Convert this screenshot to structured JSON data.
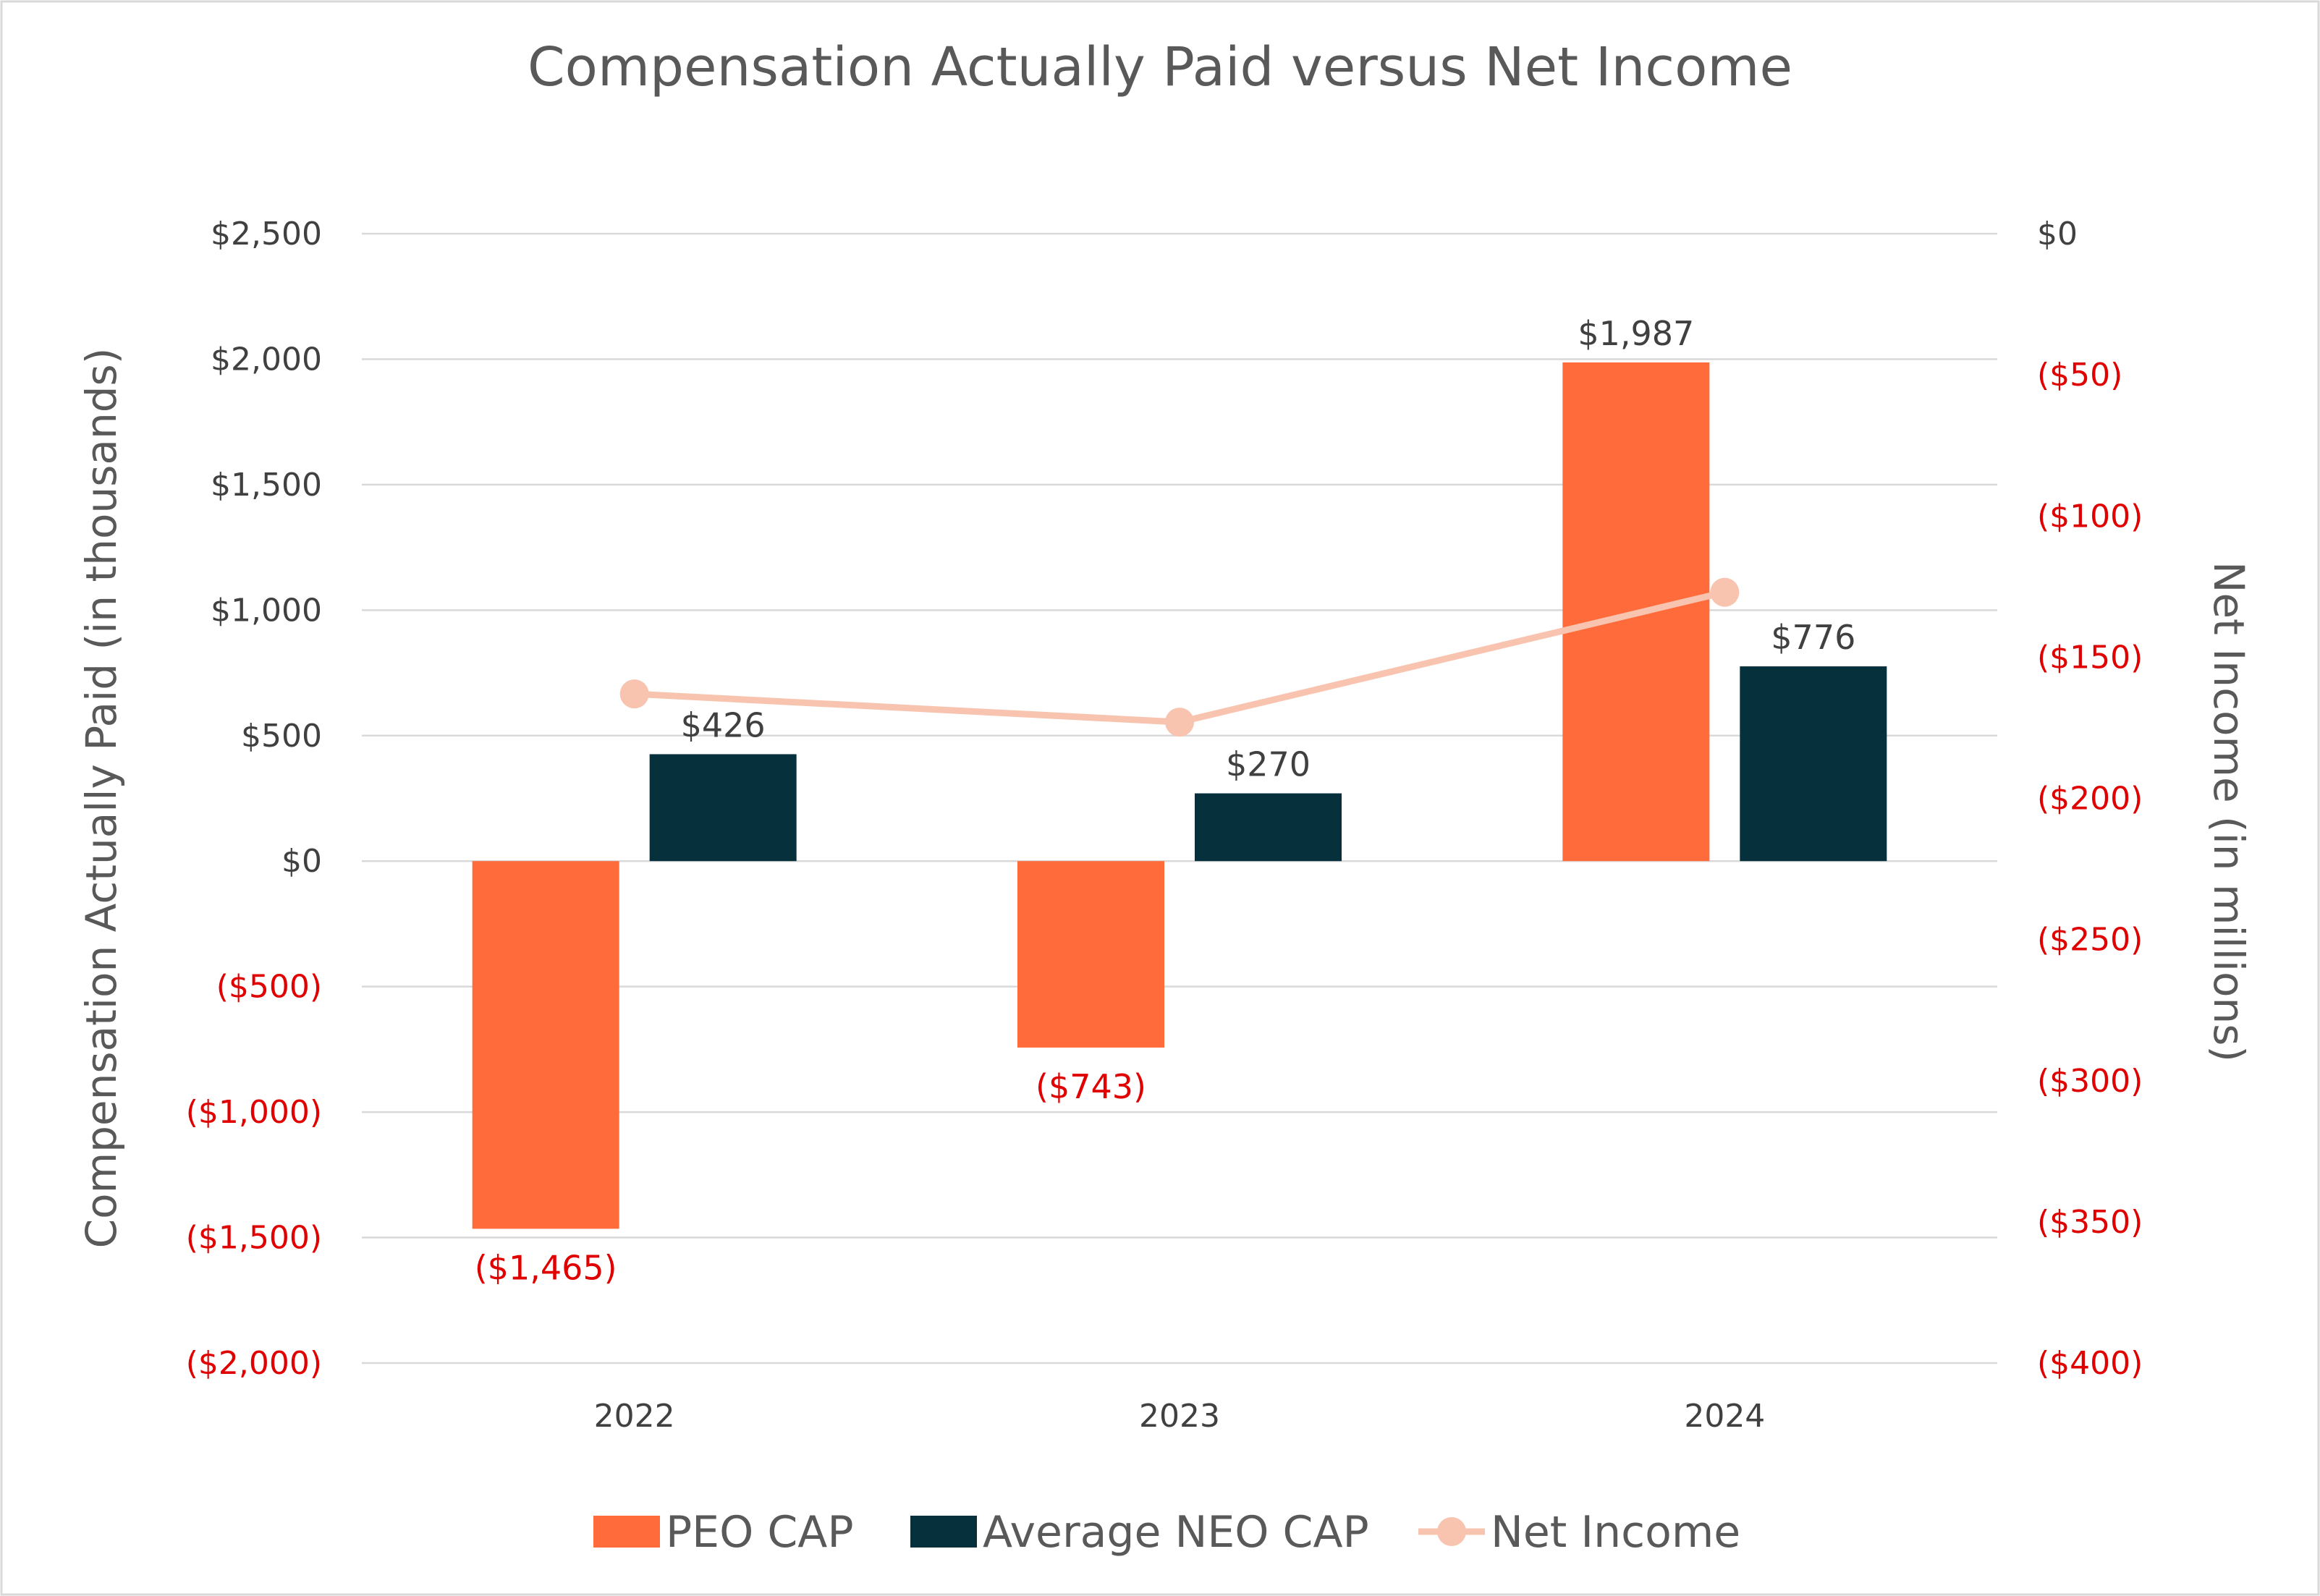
{
  "chart_data": {
    "type": "bar",
    "title": "Compensation Actually Paid versus Net Income",
    "categories": [
      "2022",
      "2023",
      "2024"
    ],
    "ylabel": "Compensation Actually Paid (in thousands)",
    "y2label": "Net Income (in millions)",
    "ylim": [
      -2000,
      2500
    ],
    "y2lim": [
      -400,
      0
    ],
    "yticks": [
      2500,
      2000,
      1500,
      1000,
      500,
      0,
      -500,
      -1000,
      -1500,
      -2000
    ],
    "ytick_labels": [
      "$2,500",
      "$2,000",
      "$1,500",
      "$1,000",
      "$500",
      "$0",
      "($500)",
      "($1,000)",
      "($1,500)",
      "($2,000)"
    ],
    "y2ticks": [
      0,
      -50,
      -100,
      -150,
      -200,
      -250,
      -300,
      -350,
      -400
    ],
    "y2tick_labels": [
      "$0",
      "($50)",
      "($100)",
      "($150)",
      "($200)",
      "($250)",
      "($300)",
      "($350)",
      "($400)"
    ],
    "grid": true,
    "legend_position": "bottom",
    "series": [
      {
        "name": "PEO CAP",
        "type": "bar",
        "axis": "left",
        "color": "#FF6B3A",
        "values": [
          -1465,
          -743,
          1987
        ],
        "labels": [
          "($1,465)",
          "($743)",
          "$1,987"
        ]
      },
      {
        "name": "Average NEO CAP",
        "type": "bar",
        "axis": "left",
        "color": "#05303C",
        "values": [
          426,
          270,
          776
        ],
        "labels": [
          "$426",
          "$270",
          "$776"
        ]
      },
      {
        "name": "Net Income",
        "type": "line",
        "axis": "right",
        "color": "#F8C4B0",
        "values": [
          -163,
          -173,
          -127
        ]
      }
    ],
    "colors": {
      "positive_text": "#404040",
      "negative_text": "#E00000",
      "gridline": "#D9D9D9"
    }
  }
}
